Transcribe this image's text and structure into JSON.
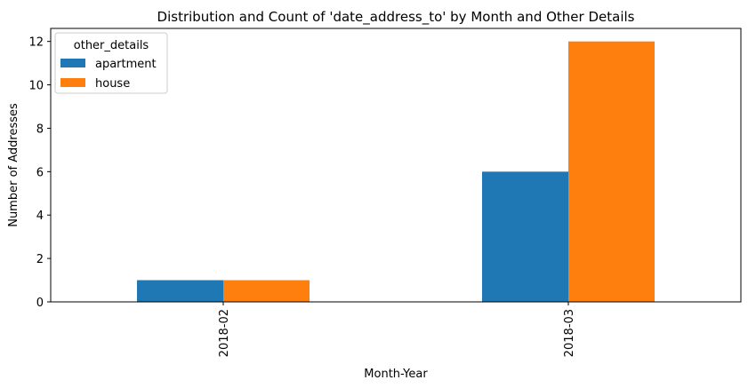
{
  "chart_data": {
    "type": "bar",
    "title": "Distribution and Count of 'date_address_to' by Month and Other Details",
    "xlabel": "Month-Year",
    "ylabel": "Number of Addresses",
    "categories": [
      "2018-02",
      "2018-03"
    ],
    "series": [
      {
        "name": "apartment",
        "values": [
          1,
          6
        ],
        "color": "#1f77b4"
      },
      {
        "name": "house",
        "values": [
          1,
          12
        ],
        "color": "#ff7f0e"
      }
    ],
    "ylim": [
      0,
      12.6
    ],
    "yticks": [
      0,
      2,
      4,
      6,
      8,
      10,
      12
    ],
    "legend": {
      "title": "other_details",
      "position": "top-left"
    },
    "grid": false
  }
}
